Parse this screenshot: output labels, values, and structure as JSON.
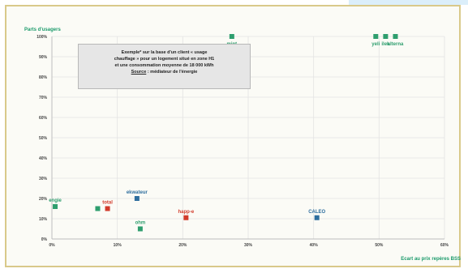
{
  "chart_data": {
    "type": "scatter",
    "ylabel": "Parts d'usagers",
    "xlabel": "Ecart au prix repères BSS",
    "x_ticks": [
      "0%",
      "10%",
      "20%",
      "30%",
      "40%",
      "50%",
      "60%"
    ],
    "y_ticks": [
      "0%",
      "10%",
      "20%",
      "30%",
      "40%",
      "50%",
      "60%",
      "70%",
      "80%",
      "90%",
      "100%"
    ],
    "xlim": [
      0,
      60
    ],
    "ylim": [
      0,
      100
    ],
    "grid": true,
    "annotation": {
      "line1": "Exemple* sur la base d'un client « usage",
      "line2": "chauffage » pour un logement situé en zone H1",
      "line3": "et une consommation moyenne de 18 000 kWh",
      "source_label": "Source",
      "source_text": " : médiateur de l'énergie"
    },
    "points": [
      {
        "x": 0.5,
        "y": 16,
        "label": "engie",
        "color": "#2e9e6e"
      },
      {
        "x": 7,
        "y": 15,
        "label": "",
        "color": "#2e9e6e"
      },
      {
        "x": 8.5,
        "y": 15,
        "label": "total",
        "color": "#d23a2a"
      },
      {
        "x": 13,
        "y": 20,
        "label": "ekwateur",
        "color": "#2e6e9e"
      },
      {
        "x": 13.5,
        "y": 5,
        "label": "ohm",
        "color": "#2e9e6e"
      },
      {
        "x": 20.5,
        "y": 10.5,
        "label": "happ-e",
        "color": "#d23a2a"
      },
      {
        "x": 27.5,
        "y": 100,
        "label": "mint",
        "color": "#2e9e6e"
      },
      {
        "x": 40.5,
        "y": 10.5,
        "label": "CALEO",
        "color": "#2e6e9e"
      },
      {
        "x": 49.5,
        "y": 100,
        "label": "yeli",
        "color": "#2e9e6e"
      },
      {
        "x": 51,
        "y": 100,
        "label": "ilek",
        "color": "#2e9e6e"
      },
      {
        "x": 52.5,
        "y": 100,
        "label": "alterna",
        "color": "#2e9e6e"
      }
    ]
  }
}
